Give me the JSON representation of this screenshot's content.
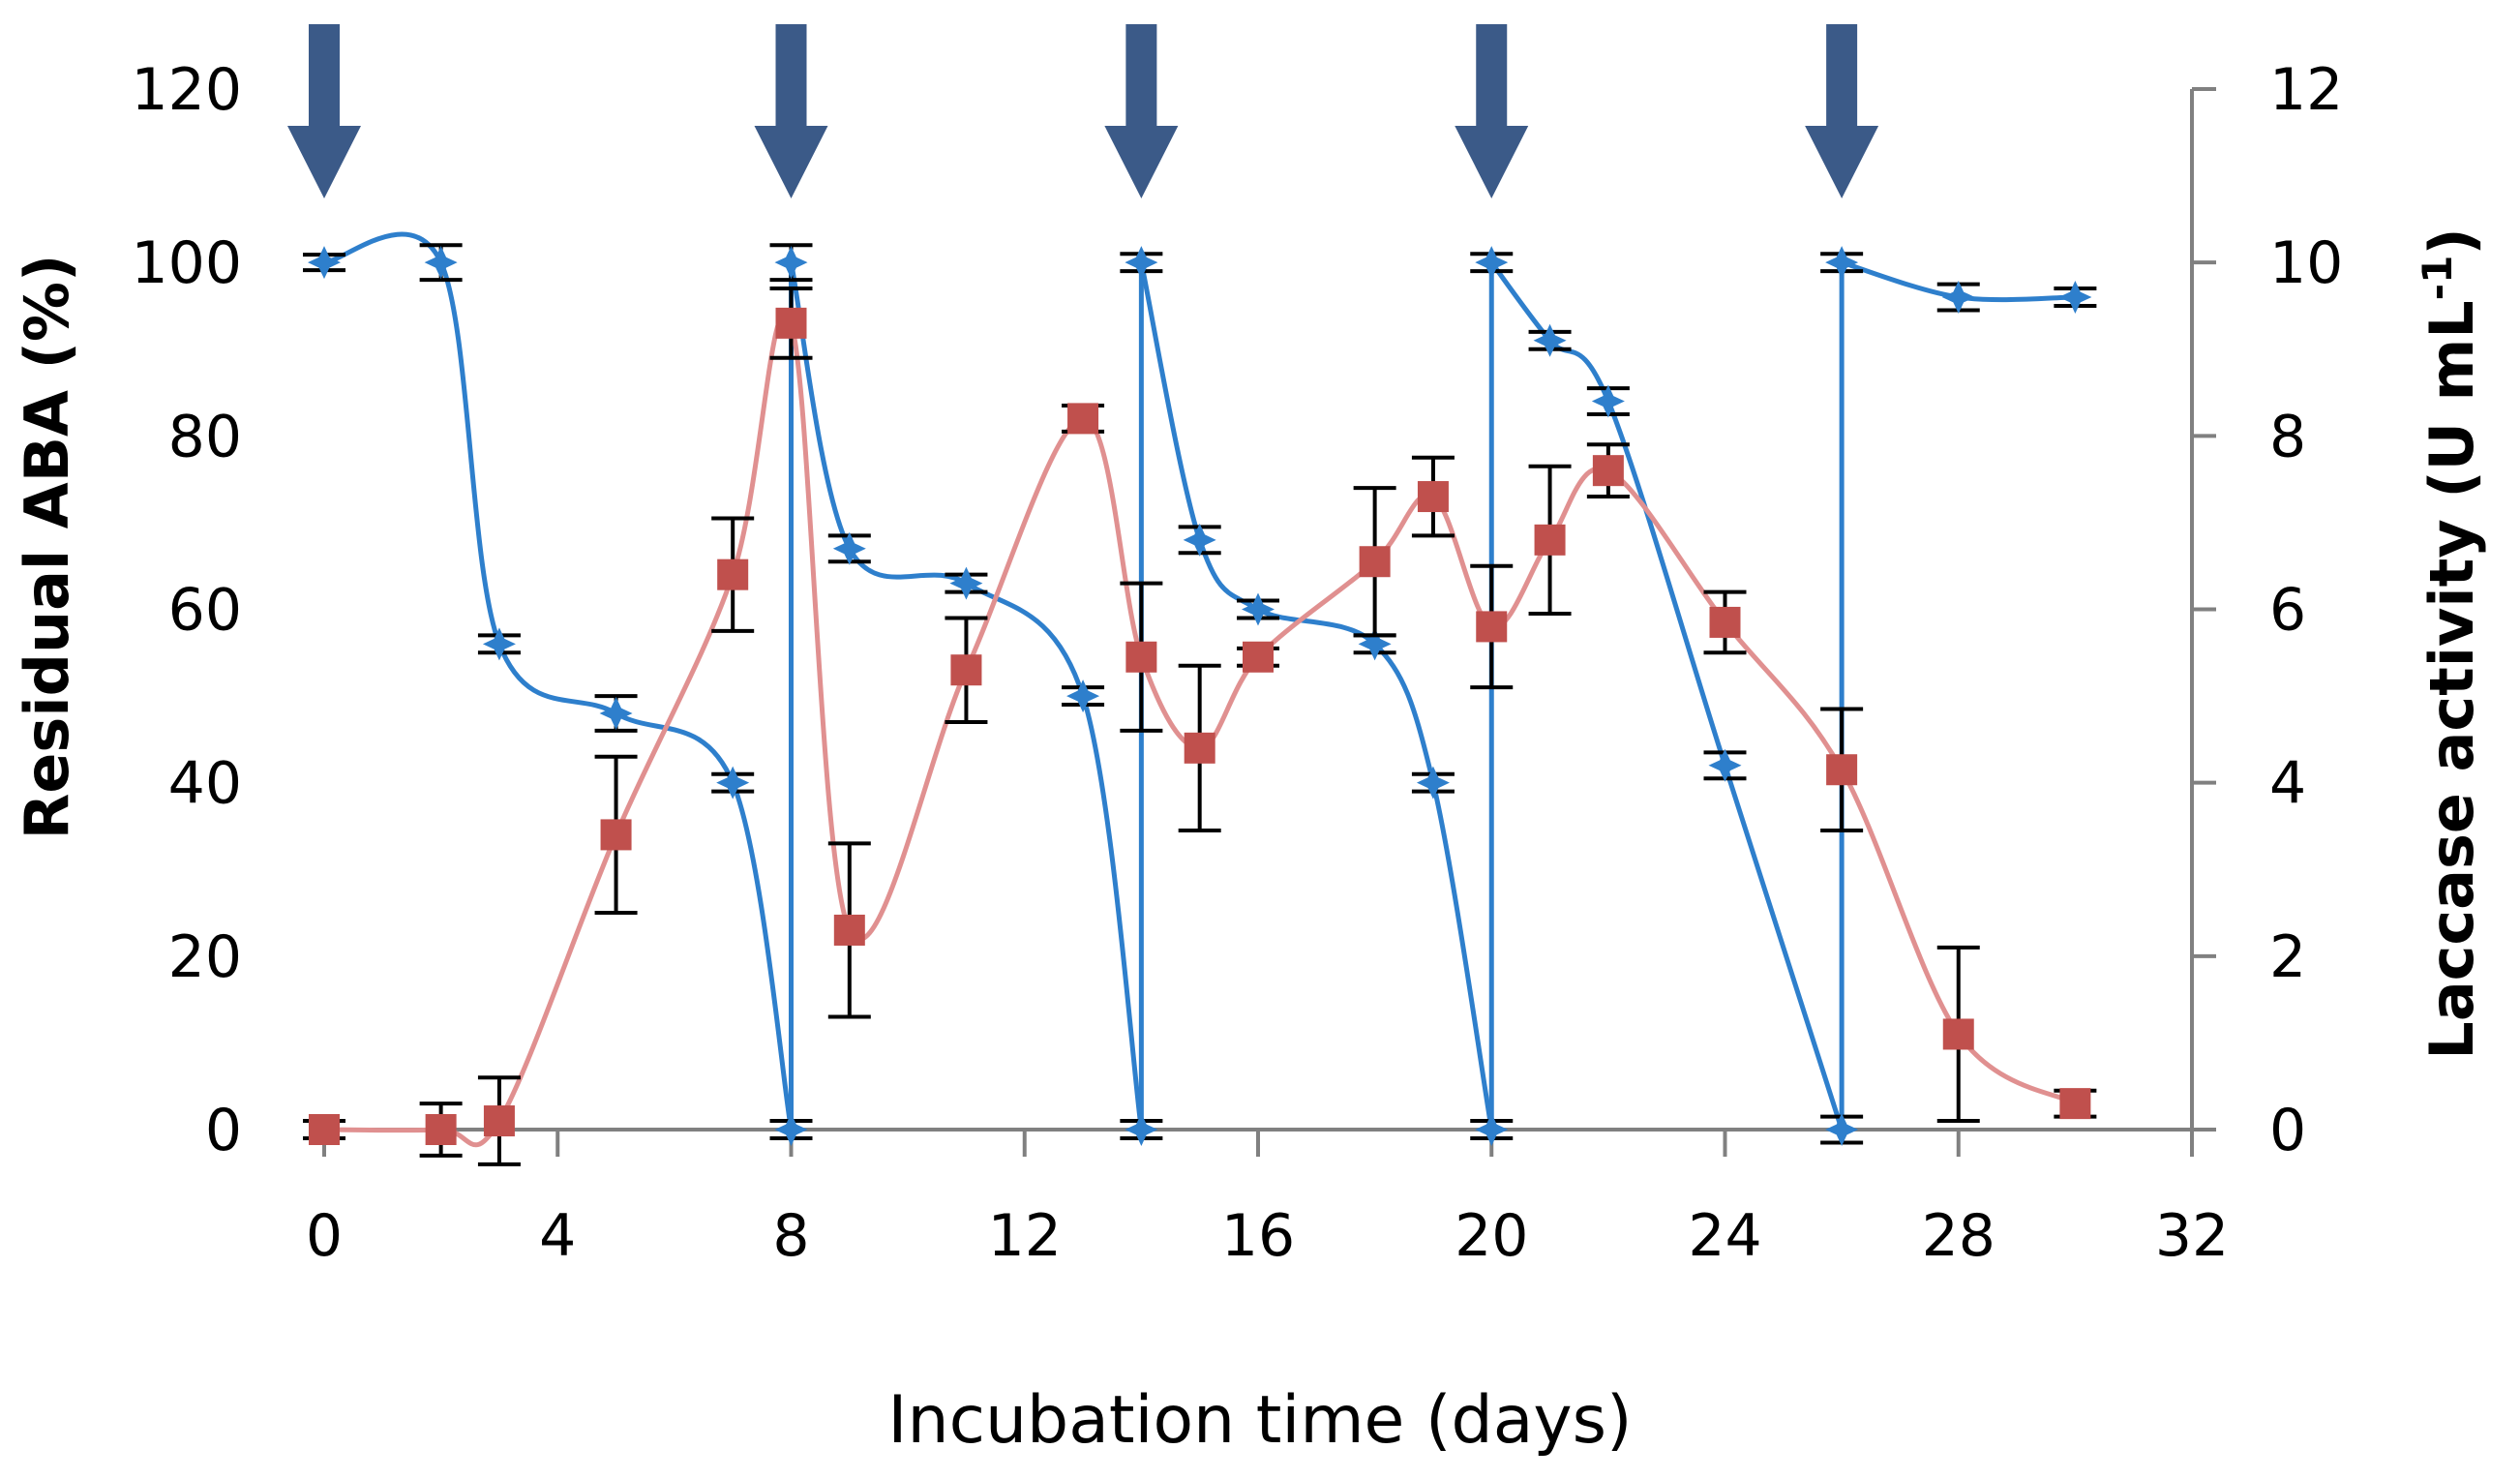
{
  "chart_data": {
    "type": "line",
    "title": "",
    "xlabel": "Incubation time (days)",
    "ylabel_left": "Residual ABA  (%)",
    "ylabel_right_main": "Laccase activity (U mL",
    "ylabel_right_sup": "-1",
    "ylabel_right_end": ")",
    "xlim": [
      0,
      32
    ],
    "ylim_left": [
      0,
      120
    ],
    "ylim_right": [
      0,
      12
    ],
    "x_ticks": [
      "0",
      "4",
      "8",
      "12",
      "16",
      "20",
      "24",
      "28",
      "32"
    ],
    "y_left_ticks": [
      "0",
      "20",
      "40",
      "60",
      "80",
      "100",
      "120"
    ],
    "y_right_ticks": [
      "0",
      "2",
      "4",
      "6",
      "8",
      "10",
      "12"
    ],
    "arrows_at_days": [
      0,
      8,
      14,
      20,
      26
    ],
    "colors": {
      "residual": "#2E7FCC",
      "laccase": "#C0504D",
      "laccase_line": "#E09090",
      "arrow": "#3B5A88",
      "axis": "#808080",
      "error": "#000000"
    },
    "series": [
      {
        "name": "Residual ABA",
        "axis": "left",
        "marker": "star",
        "segments": [
          [
            [
              0,
              100,
              0
            ],
            [
              2,
              100,
              2
            ],
            [
              3,
              56,
              1
            ],
            [
              5,
              48,
              2
            ],
            [
              7,
              40,
              1
            ],
            [
              8,
              0,
              1
            ]
          ],
          [
            [
              8,
              100,
              2
            ],
            [
              9,
              67,
              1.5
            ],
            [
              11,
              63,
              1
            ],
            [
              13,
              50,
              1
            ],
            [
              14,
              0,
              1
            ]
          ],
          [
            [
              14,
              100,
              1
            ],
            [
              15,
              68,
              1.5
            ],
            [
              16,
              60,
              1
            ],
            [
              18,
              56,
              1
            ],
            [
              19,
              40,
              1
            ],
            [
              20,
              0,
              1
            ]
          ],
          [
            [
              20,
              100,
              1
            ],
            [
              21,
              91,
              1
            ],
            [
              22,
              84,
              1.5
            ],
            [
              24,
              42,
              1.5
            ],
            [
              26,
              0,
              1.5
            ]
          ],
          [
            [
              26,
              100,
              1
            ],
            [
              28,
              96,
              1.5
            ],
            [
              30,
              96,
              1
            ]
          ]
        ]
      },
      {
        "name": "Laccase activity",
        "axis": "right",
        "marker": "square",
        "points": [
          [
            0,
            0,
            0.1
          ],
          [
            2,
            0,
            0.3
          ],
          [
            3,
            0.1,
            0.5
          ],
          [
            5,
            3.4,
            0.9
          ],
          [
            7,
            6.4,
            0.65
          ],
          [
            8,
            9.3,
            0.4
          ],
          [
            9,
            2.3,
            1.0
          ],
          [
            11,
            5.3,
            0.6
          ],
          [
            13,
            8.2,
            0.15
          ],
          [
            14,
            5.45,
            0.85
          ],
          [
            15,
            4.4,
            0.95
          ],
          [
            16,
            5.45,
            0.1
          ],
          [
            18,
            6.55,
            0.85
          ],
          [
            19,
            7.3,
            0.45
          ],
          [
            20,
            5.8,
            0.7
          ],
          [
            21,
            6.8,
            0.85
          ],
          [
            22,
            7.6,
            0.3
          ],
          [
            24,
            5.85,
            0.35
          ],
          [
            26,
            4.15,
            0.7
          ],
          [
            28,
            1.1,
            1.0
          ],
          [
            30,
            0.3,
            0.15
          ]
        ]
      }
    ]
  }
}
